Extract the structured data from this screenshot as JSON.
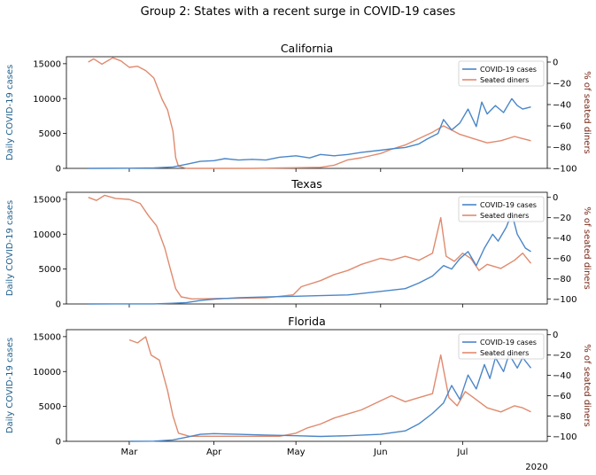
{
  "figure": {
    "title": "Group 2: States with a recent surge in COVID-19 cases",
    "x_offset_label": "2020"
  },
  "chart_data": [
    {
      "type": "line",
      "title": "California",
      "ylabel_left": "Daily COVID-19 cases",
      "ylabel_right": "% of seated diners",
      "ylim_left": [
        0,
        16000
      ],
      "yticks_left": [
        0,
        5000,
        10000,
        15000
      ],
      "ylim_right": [
        -100,
        5
      ],
      "yticks_right": [
        -100,
        -80,
        -60,
        -40,
        -20,
        0
      ],
      "x_ticks": [
        "Mar",
        "Apr",
        "May",
        "Jun",
        "Jul"
      ],
      "legend": {
        "placement": "top-right",
        "entries": [
          "COVID-19 cases",
          "Seated diners"
        ]
      },
      "series": [
        {
          "name": "COVID-19 cases",
          "axis": "left",
          "color": "#4a86c8",
          "points": [
            [
              "2020-02-15",
              0
            ],
            [
              "2020-03-01",
              20
            ],
            [
              "2020-03-10",
              60
            ],
            [
              "2020-03-17",
              200
            ],
            [
              "2020-03-22",
              600
            ],
            [
              "2020-03-27",
              1000
            ],
            [
              "2020-04-01",
              1100
            ],
            [
              "2020-04-05",
              1400
            ],
            [
              "2020-04-10",
              1200
            ],
            [
              "2020-04-15",
              1300
            ],
            [
              "2020-04-20",
              1200
            ],
            [
              "2020-04-25",
              1600
            ],
            [
              "2020-05-01",
              1800
            ],
            [
              "2020-05-06",
              1500
            ],
            [
              "2020-05-10",
              2000
            ],
            [
              "2020-05-15",
              1800
            ],
            [
              "2020-05-20",
              2000
            ],
            [
              "2020-05-25",
              2300
            ],
            [
              "2020-06-01",
              2600
            ],
            [
              "2020-06-05",
              2800
            ],
            [
              "2020-06-10",
              3000
            ],
            [
              "2020-06-15",
              3500
            ],
            [
              "2020-06-18",
              4200
            ],
            [
              "2020-06-22",
              5000
            ],
            [
              "2020-06-24",
              7000
            ],
            [
              "2020-06-27",
              5500
            ],
            [
              "2020-06-30",
              6500
            ],
            [
              "2020-07-03",
              8500
            ],
            [
              "2020-07-06",
              6000
            ],
            [
              "2020-07-08",
              9500
            ],
            [
              "2020-07-10",
              7800
            ],
            [
              "2020-07-13",
              9000
            ],
            [
              "2020-07-16",
              8000
            ],
            [
              "2020-07-19",
              10000
            ],
            [
              "2020-07-21",
              9000
            ],
            [
              "2020-07-23",
              8500
            ],
            [
              "2020-07-26",
              8800
            ]
          ]
        },
        {
          "name": "Seated diners",
          "axis": "right",
          "color": "#e08a6e",
          "points": [
            [
              "2020-02-15",
              0
            ],
            [
              "2020-02-17",
              3
            ],
            [
              "2020-02-20",
              -2
            ],
            [
              "2020-02-24",
              4
            ],
            [
              "2020-02-27",
              1
            ],
            [
              "2020-03-01",
              -5
            ],
            [
              "2020-03-04",
              -4
            ],
            [
              "2020-03-07",
              -8
            ],
            [
              "2020-03-10",
              -15
            ],
            [
              "2020-03-13",
              -35
            ],
            [
              "2020-03-15",
              -45
            ],
            [
              "2020-03-17",
              -65
            ],
            [
              "2020-03-18",
              -90
            ],
            [
              "2020-03-19",
              -98
            ],
            [
              "2020-03-22",
              -100
            ],
            [
              "2020-04-15",
              -100
            ],
            [
              "2020-05-10",
              -99
            ],
            [
              "2020-05-15",
              -97
            ],
            [
              "2020-05-20",
              -92
            ],
            [
              "2020-05-25",
              -90
            ],
            [
              "2020-06-01",
              -86
            ],
            [
              "2020-06-05",
              -82
            ],
            [
              "2020-06-10",
              -78
            ],
            [
              "2020-06-15",
              -72
            ],
            [
              "2020-06-20",
              -66
            ],
            [
              "2020-06-24",
              -60
            ],
            [
              "2020-06-27",
              -64
            ],
            [
              "2020-06-30",
              -68
            ],
            [
              "2020-07-05",
              -72
            ],
            [
              "2020-07-10",
              -76
            ],
            [
              "2020-07-15",
              -74
            ],
            [
              "2020-07-20",
              -70
            ],
            [
              "2020-07-23",
              -72
            ],
            [
              "2020-07-26",
              -74
            ]
          ]
        }
      ]
    },
    {
      "type": "line",
      "title": "Texas",
      "ylabel_left": "Daily COVID-19 cases",
      "ylabel_right": "% of seated diners",
      "ylim_left": [
        0,
        16000
      ],
      "yticks_left": [
        0,
        5000,
        10000,
        15000
      ],
      "ylim_right": [
        -105,
        5
      ],
      "yticks_right": [
        -100,
        -80,
        -60,
        -40,
        -20,
        0
      ],
      "x_ticks": [
        "Mar",
        "Apr",
        "May",
        "Jun",
        "Jul"
      ],
      "legend": {
        "placement": "top-right",
        "entries": [
          "COVID-19 cases",
          "Seated diners"
        ]
      },
      "series": [
        {
          "name": "COVID-19 cases",
          "axis": "left",
          "color": "#4a86c8",
          "points": [
            [
              "2020-02-15",
              0
            ],
            [
              "2020-03-10",
              10
            ],
            [
              "2020-03-17",
              100
            ],
            [
              "2020-03-22",
              200
            ],
            [
              "2020-03-27",
              500
            ],
            [
              "2020-04-01",
              700
            ],
            [
              "2020-04-10",
              900
            ],
            [
              "2020-04-20",
              1000
            ],
            [
              "2020-05-01",
              1100
            ],
            [
              "2020-05-10",
              1200
            ],
            [
              "2020-05-20",
              1300
            ],
            [
              "2020-05-25",
              1500
            ],
            [
              "2020-06-01",
              1800
            ],
            [
              "2020-06-10",
              2200
            ],
            [
              "2020-06-15",
              3000
            ],
            [
              "2020-06-20",
              4000
            ],
            [
              "2020-06-24",
              5500
            ],
            [
              "2020-06-27",
              5000
            ],
            [
              "2020-06-30",
              6500
            ],
            [
              "2020-07-03",
              7500
            ],
            [
              "2020-07-06",
              5500
            ],
            [
              "2020-07-09",
              8000
            ],
            [
              "2020-07-12",
              10000
            ],
            [
              "2020-07-14",
              9000
            ],
            [
              "2020-07-17",
              11000
            ],
            [
              "2020-07-19",
              13000
            ],
            [
              "2020-07-21",
              10000
            ],
            [
              "2020-07-24",
              8000
            ],
            [
              "2020-07-26",
              7500
            ]
          ]
        },
        {
          "name": "Seated diners",
          "axis": "right",
          "color": "#e08a6e",
          "points": [
            [
              "2020-02-15",
              0
            ],
            [
              "2020-02-18",
              -3
            ],
            [
              "2020-02-21",
              2
            ],
            [
              "2020-02-25",
              -1
            ],
            [
              "2020-03-01",
              -2
            ],
            [
              "2020-03-05",
              -6
            ],
            [
              "2020-03-08",
              -18
            ],
            [
              "2020-03-11",
              -28
            ],
            [
              "2020-03-14",
              -50
            ],
            [
              "2020-03-16",
              -70
            ],
            [
              "2020-03-18",
              -90
            ],
            [
              "2020-03-20",
              -98
            ],
            [
              "2020-03-24",
              -100
            ],
            [
              "2020-04-20",
              -99
            ],
            [
              "2020-04-30",
              -96
            ],
            [
              "2020-05-03",
              -88
            ],
            [
              "2020-05-10",
              -82
            ],
            [
              "2020-05-15",
              -76
            ],
            [
              "2020-05-20",
              -72
            ],
            [
              "2020-05-25",
              -66
            ],
            [
              "2020-06-01",
              -60
            ],
            [
              "2020-06-05",
              -62
            ],
            [
              "2020-06-10",
              -58
            ],
            [
              "2020-06-15",
              -62
            ],
            [
              "2020-06-20",
              -55
            ],
            [
              "2020-06-23",
              -20
            ],
            [
              "2020-06-25",
              -58
            ],
            [
              "2020-06-28",
              -63
            ],
            [
              "2020-07-01",
              -55
            ],
            [
              "2020-07-04",
              -60
            ],
            [
              "2020-07-07",
              -72
            ],
            [
              "2020-07-10",
              -66
            ],
            [
              "2020-07-15",
              -70
            ],
            [
              "2020-07-20",
              -62
            ],
            [
              "2020-07-23",
              -55
            ],
            [
              "2020-07-26",
              -65
            ]
          ]
        }
      ]
    },
    {
      "type": "line",
      "title": "Florida",
      "ylabel_left": "Daily COVID-19 cases",
      "ylabel_right": "% of seated diners",
      "ylim_left": [
        0,
        16000
      ],
      "yticks_left": [
        0,
        5000,
        10000,
        15000
      ],
      "ylim_right": [
        -105,
        5
      ],
      "yticks_right": [
        -100,
        -80,
        -60,
        -40,
        -20,
        0
      ],
      "x_ticks": [
        "Mar",
        "Apr",
        "May",
        "Jun",
        "Jul"
      ],
      "legend": {
        "placement": "top-right",
        "entries": [
          "COVID-19 cases",
          "Seated diners"
        ]
      },
      "series": [
        {
          "name": "COVID-19 cases",
          "axis": "left",
          "color": "#4a86c8",
          "points": [
            [
              "2020-03-01",
              0
            ],
            [
              "2020-03-10",
              20
            ],
            [
              "2020-03-17",
              200
            ],
            [
              "2020-03-22",
              600
            ],
            [
              "2020-03-27",
              1000
            ],
            [
              "2020-04-01",
              1100
            ],
            [
              "2020-04-10",
              1000
            ],
            [
              "2020-04-20",
              900
            ],
            [
              "2020-05-01",
              800
            ],
            [
              "2020-05-10",
              700
            ],
            [
              "2020-05-20",
              800
            ],
            [
              "2020-06-01",
              1000
            ],
            [
              "2020-06-10",
              1500
            ],
            [
              "2020-06-15",
              2500
            ],
            [
              "2020-06-20",
              4000
            ],
            [
              "2020-06-24",
              5500
            ],
            [
              "2020-06-27",
              8000
            ],
            [
              "2020-06-30",
              6000
            ],
            [
              "2020-07-03",
              9500
            ],
            [
              "2020-07-06",
              7500
            ],
            [
              "2020-07-09",
              11000
            ],
            [
              "2020-07-11",
              9000
            ],
            [
              "2020-07-13",
              12000
            ],
            [
              "2020-07-16",
              10000
            ],
            [
              "2020-07-18",
              12500
            ],
            [
              "2020-07-21",
              10500
            ],
            [
              "2020-07-23",
              12000
            ],
            [
              "2020-07-26",
              10500
            ]
          ]
        },
        {
          "name": "Seated diners",
          "axis": "right",
          "color": "#e08a6e",
          "points": [
            [
              "2020-03-01",
              -5
            ],
            [
              "2020-03-04",
              -8
            ],
            [
              "2020-03-07",
              -2
            ],
            [
              "2020-03-09",
              -20
            ],
            [
              "2020-03-12",
              -25
            ],
            [
              "2020-03-15",
              -55
            ],
            [
              "2020-03-17",
              -80
            ],
            [
              "2020-03-19",
              -97
            ],
            [
              "2020-03-23",
              -100
            ],
            [
              "2020-04-25",
              -100
            ],
            [
              "2020-05-01",
              -97
            ],
            [
              "2020-05-05",
              -92
            ],
            [
              "2020-05-10",
              -88
            ],
            [
              "2020-05-15",
              -82
            ],
            [
              "2020-05-20",
              -78
            ],
            [
              "2020-05-25",
              -74
            ],
            [
              "2020-06-01",
              -65
            ],
            [
              "2020-06-05",
              -60
            ],
            [
              "2020-06-10",
              -66
            ],
            [
              "2020-06-15",
              -62
            ],
            [
              "2020-06-20",
              -58
            ],
            [
              "2020-06-23",
              -20
            ],
            [
              "2020-06-26",
              -62
            ],
            [
              "2020-06-29",
              -70
            ],
            [
              "2020-07-02",
              -56
            ],
            [
              "2020-07-05",
              -62
            ],
            [
              "2020-07-10",
              -72
            ],
            [
              "2020-07-15",
              -76
            ],
            [
              "2020-07-20",
              -70
            ],
            [
              "2020-07-23",
              -72
            ],
            [
              "2020-07-26",
              -76
            ]
          ]
        }
      ]
    }
  ]
}
